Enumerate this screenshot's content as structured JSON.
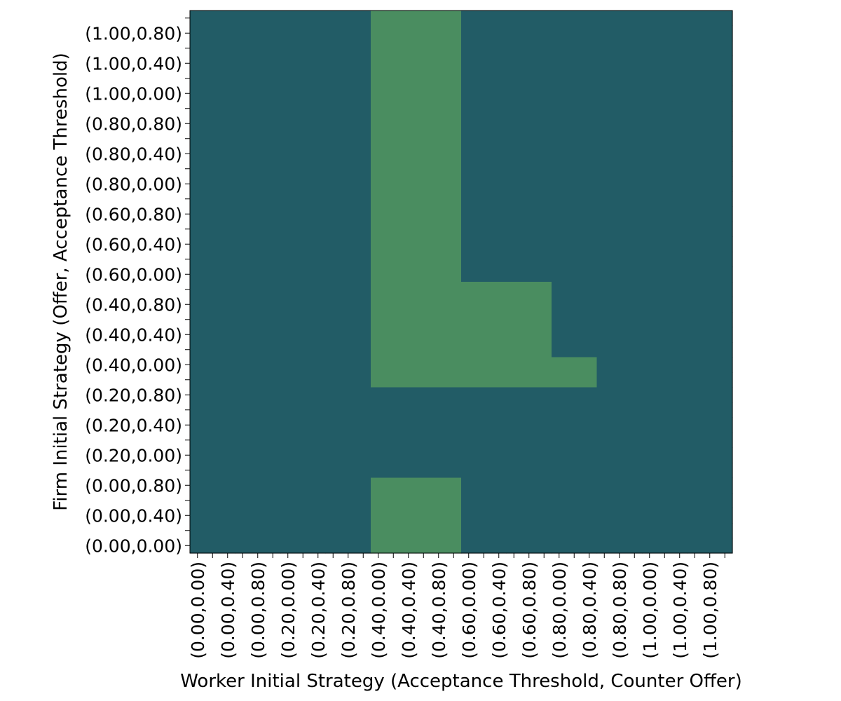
{
  "chart_data": {
    "type": "heatmap",
    "title": "",
    "xlabel": "Worker Initial Strategy (Acceptance Threshold, Counter Offer)",
    "ylabel": "Firm Initial Strategy (Offer, Acceptance Threshold)",
    "x_ticklabels": [
      "(0.00,0.00)",
      "(0.00,0.40)",
      "(0.00,0.80)",
      "(0.20,0.00)",
      "(0.20,0.40)",
      "(0.20,0.80)",
      "(0.40,0.00)",
      "(0.40,0.40)",
      "(0.40,0.80)",
      "(0.60,0.00)",
      "(0.60,0.40)",
      "(0.60,0.80)",
      "(0.80,0.00)",
      "(0.80,0.40)",
      "(0.80,0.80)",
      "(1.00,0.00)",
      "(1.00,0.40)",
      "(1.00,0.80)"
    ],
    "y_ticklabels": [
      "(1.00,0.80)",
      "(1.00,0.40)",
      "(1.00,0.00)",
      "(0.80,0.80)",
      "(0.80,0.40)",
      "(0.80,0.00)",
      "(0.60,0.80)",
      "(0.60,0.40)",
      "(0.60,0.00)",
      "(0.40,0.80)",
      "(0.40,0.40)",
      "(0.40,0.00)",
      "(0.20,0.80)",
      "(0.20,0.40)",
      "(0.20,0.00)",
      "(0.00,0.80)",
      "(0.00,0.40)",
      "(0.00,0.00)"
    ],
    "x_ncols": 12,
    "y_nrows": 36,
    "grid": false,
    "colors": {
      "0": "#225c66",
      "1": "#4a8d60"
    },
    "matrix": [
      [
        0,
        0,
        0,
        0,
        1,
        1,
        0,
        0,
        0,
        0,
        0,
        0
      ],
      [
        0,
        0,
        0,
        0,
        1,
        1,
        0,
        0,
        0,
        0,
        0,
        0
      ],
      [
        0,
        0,
        0,
        0,
        1,
        1,
        0,
        0,
        0,
        0,
        0,
        0
      ],
      [
        0,
        0,
        0,
        0,
        1,
        1,
        0,
        0,
        0,
        0,
        0,
        0
      ],
      [
        0,
        0,
        0,
        0,
        1,
        1,
        0,
        0,
        0,
        0,
        0,
        0
      ],
      [
        0,
        0,
        0,
        0,
        1,
        1,
        0,
        0,
        0,
        0,
        0,
        0
      ],
      [
        0,
        0,
        0,
        0,
        1,
        1,
        0,
        0,
        0,
        0,
        0,
        0
      ],
      [
        0,
        0,
        0,
        0,
        1,
        1,
        0,
        0,
        0,
        0,
        0,
        0
      ],
      [
        0,
        0,
        0,
        0,
        1,
        1,
        0,
        0,
        0,
        0,
        0,
        0
      ],
      [
        0,
        0,
        0,
        0,
        1,
        1,
        0,
        0,
        0,
        0,
        0,
        0
      ],
      [
        0,
        0,
        0,
        0,
        1,
        1,
        0,
        0,
        0,
        0,
        0,
        0
      ],
      [
        0,
        0,
        0,
        0,
        1,
        1,
        0,
        0,
        0,
        0,
        0,
        0
      ],
      [
        0,
        0,
        0,
        0,
        1,
        1,
        0,
        0,
        0,
        0,
        0,
        0
      ],
      [
        0,
        0,
        0,
        0,
        1,
        1,
        0,
        0,
        0,
        0,
        0,
        0
      ],
      [
        0,
        0,
        0,
        0,
        1,
        1,
        0,
        0,
        0,
        0,
        0,
        0
      ],
      [
        0,
        0,
        0,
        0,
        1,
        1,
        0,
        0,
        0,
        0,
        0,
        0
      ],
      [
        0,
        0,
        0,
        0,
        1,
        1,
        0,
        0,
        0,
        0,
        0,
        0
      ],
      [
        0,
        0,
        0,
        0,
        1,
        1,
        0,
        0,
        0,
        0,
        0,
        0
      ],
      [
        0,
        0,
        0,
        0,
        1,
        1,
        1,
        1,
        0,
        0,
        0,
        0
      ],
      [
        0,
        0,
        0,
        0,
        1,
        1,
        1,
        1,
        0,
        0,
        0,
        0
      ],
      [
        0,
        0,
        0,
        0,
        1,
        1,
        1,
        1,
        0,
        0,
        0,
        0
      ],
      [
        0,
        0,
        0,
        0,
        1,
        1,
        1,
        1,
        0,
        0,
        0,
        0
      ],
      [
        0,
        0,
        0,
        0,
        1,
        1,
        1,
        1,
        0,
        0,
        0,
        0
      ],
      [
        0,
        0,
        0,
        0,
        1,
        1,
        1,
        1,
        1,
        0,
        0,
        0
      ],
      [
        0,
        0,
        0,
        0,
        1,
        1,
        1,
        1,
        1,
        0,
        0,
        0
      ],
      [
        0,
        0,
        0,
        0,
        0,
        0,
        0,
        0,
        0,
        0,
        0,
        0
      ],
      [
        0,
        0,
        0,
        0,
        0,
        0,
        0,
        0,
        0,
        0,
        0,
        0
      ],
      [
        0,
        0,
        0,
        0,
        0,
        0,
        0,
        0,
        0,
        0,
        0,
        0
      ],
      [
        0,
        0,
        0,
        0,
        0,
        0,
        0,
        0,
        0,
        0,
        0,
        0
      ],
      [
        0,
        0,
        0,
        0,
        0,
        0,
        0,
        0,
        0,
        0,
        0,
        0
      ],
      [
        0,
        0,
        0,
        0,
        0,
        0,
        0,
        0,
        0,
        0,
        0,
        0
      ],
      [
        0,
        0,
        0,
        0,
        1,
        1,
        0,
        0,
        0,
        0,
        0,
        0
      ],
      [
        0,
        0,
        0,
        0,
        1,
        1,
        0,
        0,
        0,
        0,
        0,
        0
      ],
      [
        0,
        0,
        0,
        0,
        1,
        1,
        0,
        0,
        0,
        0,
        0,
        0
      ],
      [
        0,
        0,
        0,
        0,
        1,
        1,
        0,
        0,
        0,
        0,
        0,
        0
      ],
      [
        0,
        0,
        0,
        0,
        1,
        1,
        0,
        0,
        0,
        0,
        0,
        0
      ]
    ]
  }
}
